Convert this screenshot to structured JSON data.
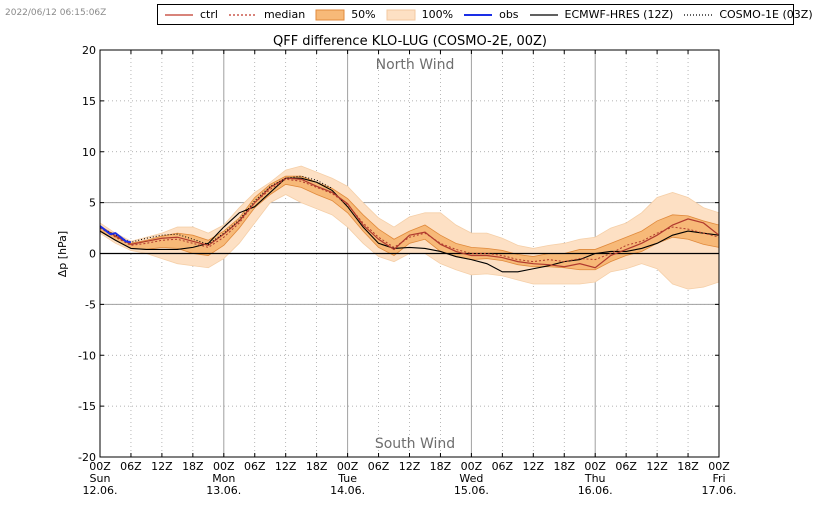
{
  "timestamp": "2022/06/12 06:15:06Z",
  "legend": [
    {
      "label": "ctrl",
      "kind": "line",
      "color": "#c0392b",
      "dash": ""
    },
    {
      "label": "median",
      "kind": "line",
      "color": "#c0392b",
      "dash": "2,2"
    },
    {
      "label": "50%",
      "kind": "fill",
      "color": "#f7b978",
      "border": "#e08a3c"
    },
    {
      "label": "100%",
      "kind": "fill",
      "color": "#fde0c4",
      "border": "#f3c9a0"
    },
    {
      "label": "obs",
      "kind": "line",
      "color": "#1a2ee6",
      "dash": ""
    },
    {
      "label": "ECMWF-HRES (12Z)",
      "kind": "line",
      "color": "#000000",
      "dash": ""
    },
    {
      "label": "COSMO-1E (03Z)",
      "kind": "line",
      "color": "#000000",
      "dash": "1,2"
    }
  ],
  "chart_data": {
    "type": "line",
    "title": "QFF difference KLO-LUG (COSMO-2E, 00Z)",
    "ylabel": "Δp [hPa]",
    "ylim": [
      -20,
      20
    ],
    "yticks": [
      20,
      15,
      10,
      5,
      0,
      -5,
      -10,
      -15,
      -20
    ],
    "xlim_hours": [
      0,
      120
    ],
    "x_tick_hours": [
      0,
      6,
      12,
      18,
      24,
      30,
      36,
      42,
      48,
      54,
      60,
      66,
      72,
      78,
      84,
      90,
      96,
      102,
      108,
      114,
      120
    ],
    "x_tick_labels": [
      "00Z",
      "06Z",
      "12Z",
      "18Z",
      "00Z",
      "06Z",
      "12Z",
      "18Z",
      "00Z",
      "06Z",
      "12Z",
      "18Z",
      "00Z",
      "06Z",
      "12Z",
      "18Z",
      "00Z",
      "06Z",
      "12Z",
      "18Z",
      "00Z"
    ],
    "day_labels": [
      {
        "hour": 0,
        "day": "Sun",
        "date": "12.06."
      },
      {
        "hour": 24,
        "day": "Mon",
        "date": "13.06."
      },
      {
        "hour": 48,
        "day": "Tue",
        "date": "14.06."
      },
      {
        "hour": 72,
        "day": "Wed",
        "date": "15.06."
      },
      {
        "hour": 96,
        "day": "Thu",
        "date": "16.06."
      },
      {
        "hour": 120,
        "day": "Fri",
        "date": "17.06."
      }
    ],
    "annotations": {
      "top": "North Wind",
      "bottom": "South Wind"
    },
    "grid": true,
    "hours": [
      0,
      3,
      6,
      9,
      12,
      15,
      18,
      21,
      24,
      27,
      30,
      33,
      36,
      39,
      42,
      45,
      48,
      51,
      54,
      57,
      60,
      63,
      66,
      69,
      72,
      75,
      78,
      81,
      84,
      87,
      90,
      93,
      96,
      99,
      102,
      105,
      108,
      111,
      114,
      117,
      120
    ],
    "series": [
      {
        "name": "100% max",
        "values": [
          3.0,
          2.0,
          1.2,
          1.6,
          2.0,
          2.6,
          2.6,
          2.0,
          2.8,
          4.5,
          6.0,
          7.0,
          8.2,
          8.6,
          8.0,
          7.4,
          6.6,
          5.0,
          3.5,
          2.6,
          3.6,
          4.0,
          4.0,
          2.8,
          2.0,
          2.0,
          1.5,
          0.8,
          0.5,
          0.8,
          1.0,
          1.4,
          1.6,
          2.5,
          3.0,
          4.0,
          5.5,
          6.0,
          5.5,
          4.5,
          4.0
        ]
      },
      {
        "name": "50% max",
        "values": [
          2.7,
          1.8,
          1.0,
          1.3,
          1.7,
          2.0,
          1.8,
          1.3,
          2.2,
          3.5,
          5.5,
          6.8,
          7.6,
          7.6,
          7.0,
          6.4,
          5.4,
          3.8,
          2.4,
          1.4,
          2.2,
          2.8,
          1.8,
          1.0,
          0.6,
          0.5,
          0.3,
          -0.1,
          -0.3,
          0.0,
          0.0,
          0.4,
          0.4,
          1.0,
          1.6,
          2.2,
          3.2,
          3.8,
          3.7,
          3.2,
          2.8
        ]
      },
      {
        "name": "50% min",
        "values": [
          2.3,
          1.3,
          0.5,
          0.4,
          0.6,
          0.5,
          0.0,
          -0.2,
          0.8,
          2.5,
          4.5,
          5.8,
          6.8,
          6.5,
          5.8,
          5.2,
          4.0,
          2.2,
          0.6,
          -0.2,
          1.0,
          1.4,
          0.2,
          -0.3,
          -0.6,
          -0.5,
          -0.7,
          -1.1,
          -1.3,
          -1.3,
          -1.4,
          -1.6,
          -1.6,
          -0.8,
          -0.2,
          0.2,
          1.0,
          1.6,
          1.4,
          0.9,
          0.6
        ]
      },
      {
        "name": "100% min",
        "values": [
          2.0,
          1.0,
          0.3,
          0.0,
          -0.5,
          -1.0,
          -1.2,
          -1.4,
          -0.5,
          1.0,
          3.0,
          5.0,
          5.8,
          5.0,
          4.4,
          3.8,
          2.6,
          1.0,
          -0.3,
          -0.8,
          0.0,
          0.0,
          -1.0,
          -1.6,
          -2.1,
          -2.0,
          -2.2,
          -2.6,
          -3.0,
          -3.0,
          -3.0,
          -3.0,
          -2.8,
          -1.8,
          -1.5,
          -1.0,
          -1.5,
          -3.0,
          -3.5,
          -3.3,
          -2.8
        ]
      },
      {
        "name": "median",
        "values": [
          2.5,
          1.6,
          0.8,
          1.0,
          1.3,
          1.4,
          1.0,
          0.6,
          1.6,
          3.0,
          5.0,
          6.3,
          7.3,
          7.1,
          6.5,
          5.9,
          4.8,
          3.0,
          1.6,
          0.6,
          1.6,
          2.0,
          1.0,
          0.4,
          0.0,
          0.0,
          -0.2,
          -0.6,
          -0.8,
          -0.6,
          -0.8,
          -0.5,
          -0.6,
          0.0,
          0.8,
          1.2,
          2.0,
          2.6,
          2.4,
          2.0,
          1.6
        ]
      },
      {
        "name": "ctrl",
        "values": [
          2.6,
          1.7,
          0.9,
          1.2,
          1.5,
          1.6,
          1.2,
          0.8,
          1.9,
          3.2,
          5.0,
          6.5,
          7.4,
          7.3,
          6.6,
          6.0,
          4.9,
          2.8,
          1.4,
          0.4,
          1.8,
          2.1,
          0.9,
          0.2,
          -0.2,
          -0.2,
          -0.4,
          -0.8,
          -1.0,
          -1.1,
          -1.3,
          -1.0,
          -1.4,
          -0.2,
          0.4,
          1.0,
          1.8,
          2.8,
          3.4,
          3.0,
          1.8
        ]
      },
      {
        "name": "ECMWF-HRES (12Z)",
        "values": [
          2.2,
          1.3,
          0.5,
          0.4,
          0.4,
          0.4,
          0.6,
          1.0,
          2.6,
          4.0,
          4.6,
          6.0,
          7.4,
          7.4,
          7.0,
          6.2,
          4.6,
          2.6,
          1.0,
          0.5,
          0.6,
          0.5,
          0.2,
          -0.3,
          -0.6,
          -1.0,
          -1.8,
          -1.8,
          -1.5,
          -1.2,
          -0.8,
          -0.6,
          0.0,
          0.2,
          0.2,
          0.5,
          1.0,
          1.8,
          2.2,
          2.0,
          1.8
        ]
      },
      {
        "name": "COSMO-1E (03Z)",
        "values": [
          2.6,
          1.8,
          1.1,
          1.5,
          1.8,
          1.9,
          1.4,
          0.9,
          2.0,
          3.3,
          5.2,
          6.6,
          7.4,
          7.6,
          7.2,
          6.4
        ]
      },
      {
        "name": "obs",
        "hours": [
          0,
          1,
          2,
          3,
          4,
          5,
          6
        ],
        "values": [
          2.7,
          2.3,
          1.9,
          2.0,
          1.6,
          1.2,
          1.1
        ]
      }
    ]
  }
}
